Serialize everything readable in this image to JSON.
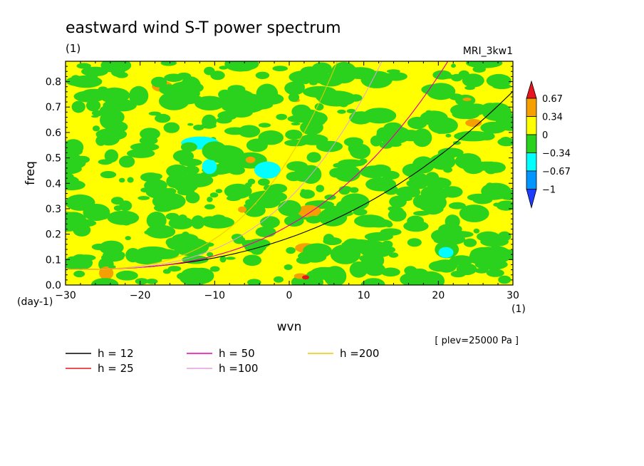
{
  "chart_data": {
    "type": "heatmap",
    "title": "eastward wind S-T power spectrum",
    "subtitle_left": "(1)",
    "subtitle_right": "MRI_3kw1",
    "xlabel": "wvn",
    "ylabel": "freq",
    "x_unit": "(1)",
    "y_unit": "(day-1)",
    "xlim": [
      -30,
      30
    ],
    "ylim": [
      0,
      0.88
    ],
    "x_ticks": [
      -30,
      -20,
      -10,
      0,
      10,
      20,
      30
    ],
    "y_ticks": [
      0.0,
      0.1,
      0.2,
      0.3,
      0.4,
      0.5,
      0.6,
      0.7,
      0.8
    ],
    "annotation": "[ plev=25000 Pa ]",
    "colorbar": {
      "levels": [
        "0.67",
        "0.34",
        "0",
        "−0.34",
        "−0.67",
        "−1"
      ],
      "colors": [
        "#e8141e",
        "#f5a000",
        "#ffff00",
        "#2ad21e",
        "#00ffff",
        "#0096ff",
        "#1e3cff"
      ]
    },
    "series": [
      {
        "name": "h = 12",
        "color": "#000000",
        "h": 12
      },
      {
        "name": "h = 25",
        "color": "#e8141e",
        "h": 25
      },
      {
        "name": "h = 50",
        "color": "#e600b4",
        "h": 50
      },
      {
        "name": "h =100",
        "color": "#e0a0e0",
        "h": 100
      },
      {
        "name": "h =200",
        "color": "#f0c800",
        "h": 200
      }
    ]
  }
}
